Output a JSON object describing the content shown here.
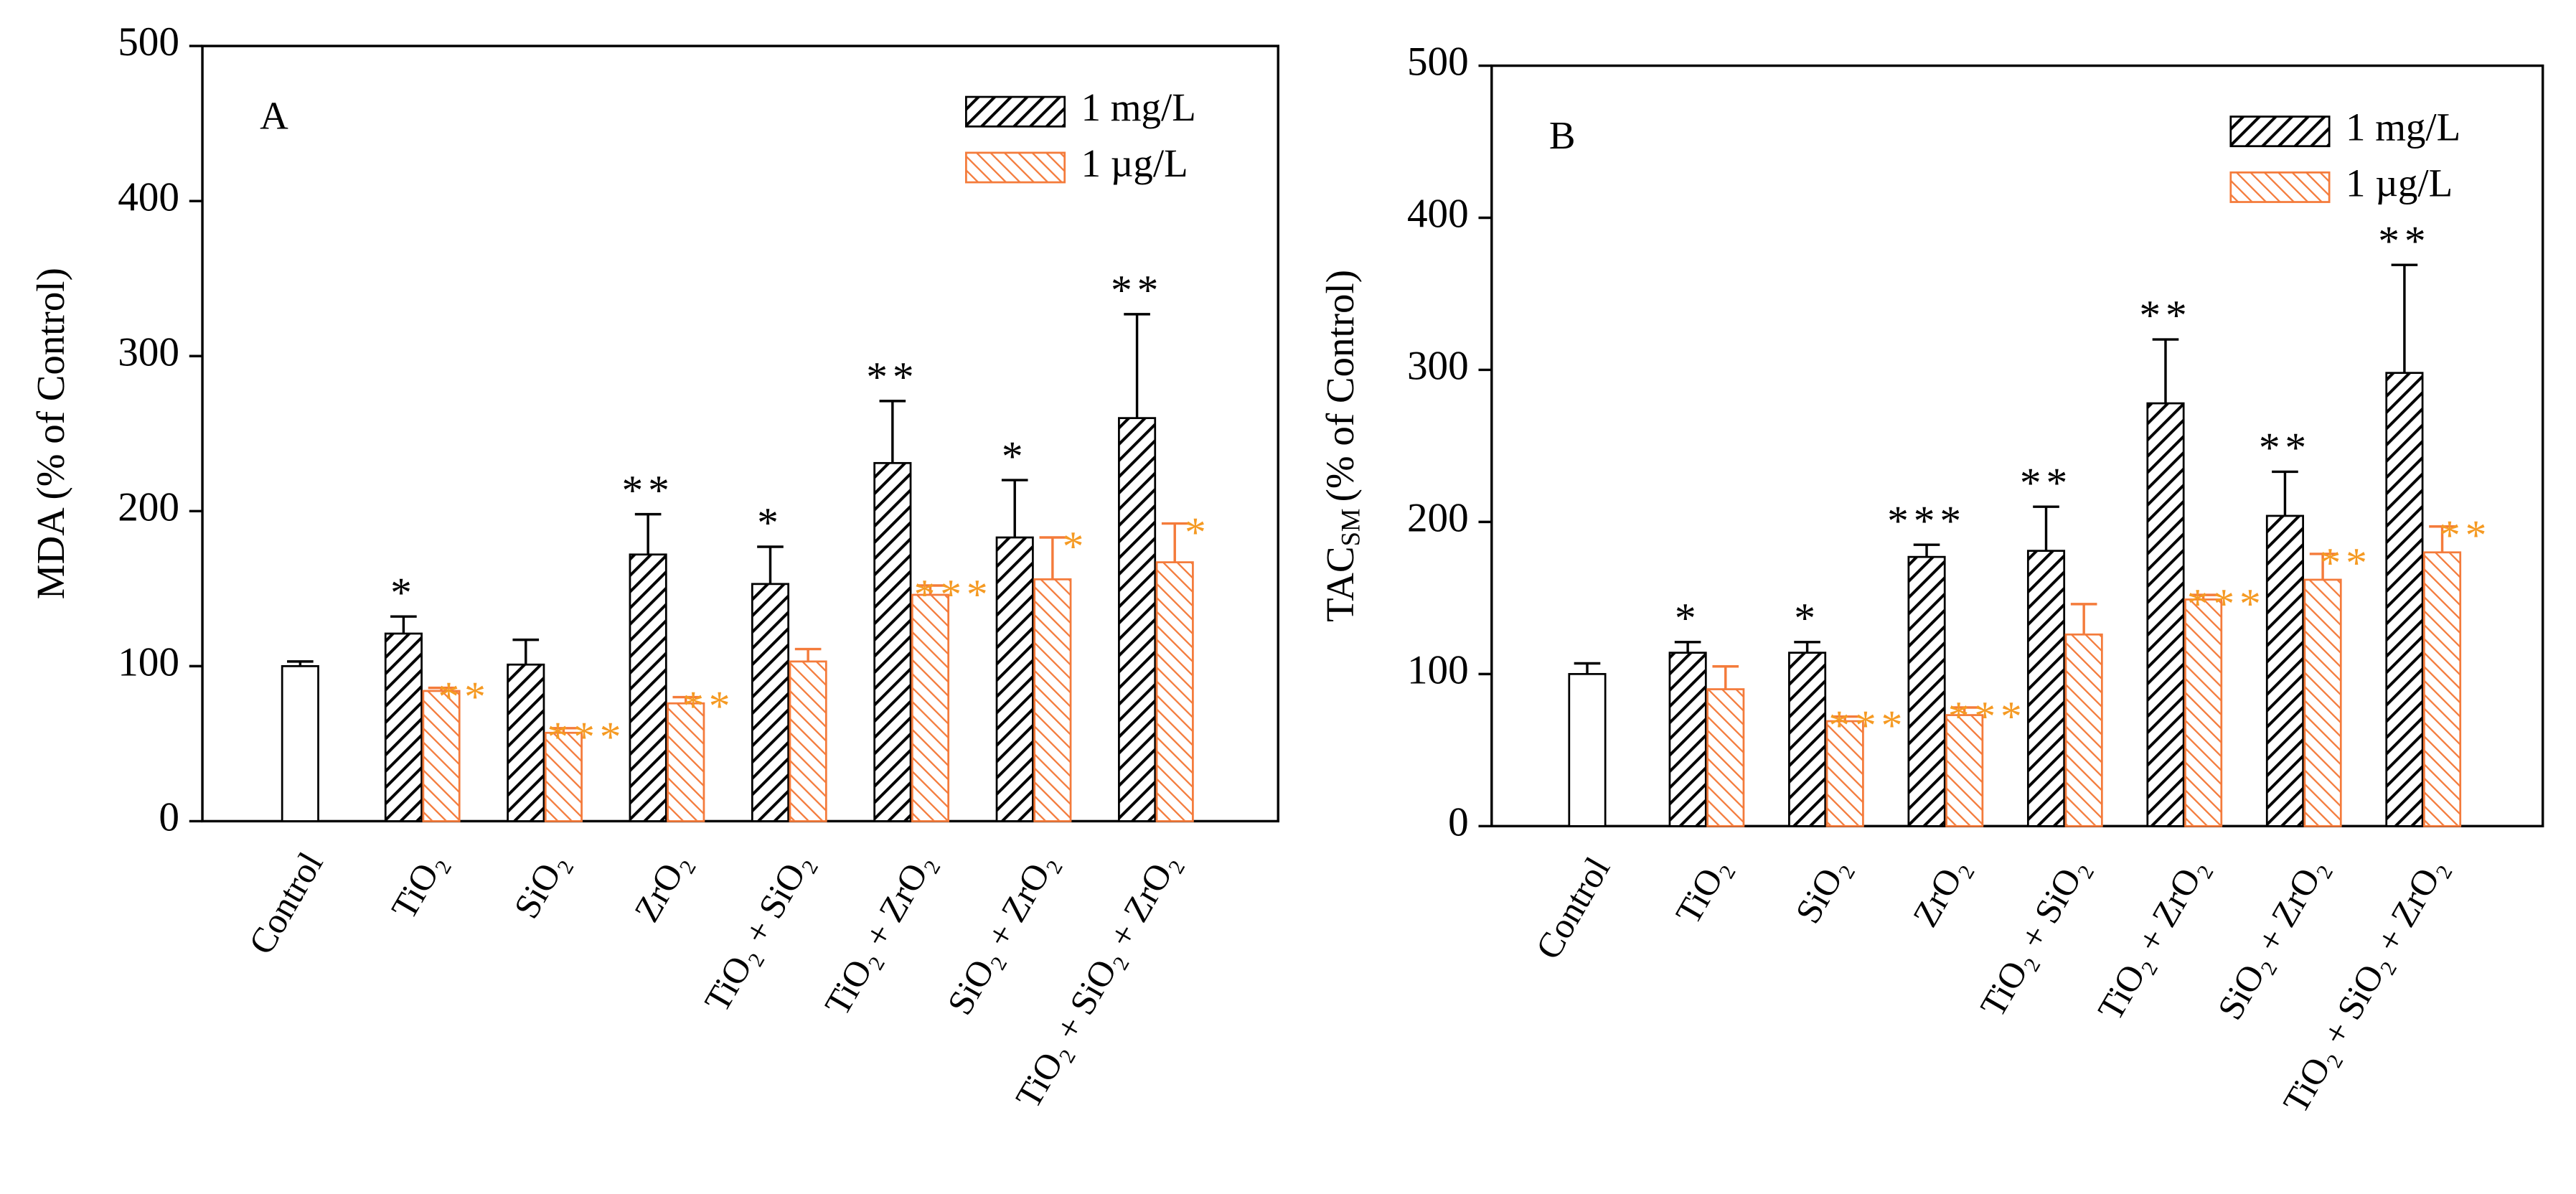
{
  "chart_data": [
    {
      "type": "bar",
      "panel_label": "A",
      "y_label": "MDA (% of Control)",
      "categories": [
        "Control",
        "TiO₂",
        "SiO₂",
        "ZrO₂",
        "TiO₂ + SiO₂",
        "TiO₂ + ZrO₂",
        "SiO₂ + ZrO₂",
        "TiO₂ + SiO₂ + ZrO₂"
      ],
      "control": {
        "value": 100,
        "error": 3,
        "color": "#ffffff"
      },
      "series": [
        {
          "name": "1 mg/L",
          "color": "#000000",
          "values": [
            null,
            121,
            101,
            172,
            153,
            231,
            183,
            260
          ],
          "errors": [
            null,
            11,
            16,
            26,
            24,
            40,
            37,
            67
          ],
          "stars": [
            null,
            "*",
            null,
            "**",
            "*",
            "**",
            "*",
            "**"
          ],
          "star_color": "#000000"
        },
        {
          "name": "1 µg/L",
          "color": "#f47b3b",
          "values": [
            null,
            84,
            57,
            76,
            103,
            146,
            156,
            167
          ],
          "errors": [
            null,
            2,
            3,
            4,
            8,
            6,
            27,
            25
          ],
          "stars": [
            null,
            "**",
            "***",
            "**",
            null,
            "***",
            "*",
            "*"
          ],
          "star_color": "#f59a23"
        }
      ],
      "ylim": [
        0,
        500
      ],
      "yticks": [
        0,
        100,
        200,
        300,
        400,
        500
      ],
      "legend": "upper right"
    },
    {
      "type": "bar",
      "panel_label": "B",
      "y_label": "TAC",
      "y_label_sub": "SM",
      "y_label_rest": "(% of Control)",
      "categories": [
        "Control",
        "TiO₂",
        "SiO₂",
        "ZrO₂",
        "TiO₂ + SiO₂",
        "TiO₂ + ZrO₂",
        "SiO₂ + ZrO₂",
        "TiO₂ + SiO₂ + ZrO₂"
      ],
      "control": {
        "value": 100,
        "error": 7,
        "color": "#ffffff"
      },
      "series": [
        {
          "name": "1 mg/L",
          "color": "#000000",
          "values": [
            null,
            114,
            114,
            177,
            181,
            278,
            204,
            298
          ],
          "errors": [
            null,
            7,
            7,
            8,
            29,
            42,
            29,
            71
          ],
          "stars": [
            null,
            "*",
            "*",
            "***",
            "**",
            "**",
            "**",
            "**"
          ],
          "star_color": "#000000"
        },
        {
          "name": "1 µg/L",
          "color": "#f47b3b",
          "values": [
            null,
            90,
            69,
            73,
            126,
            149,
            162,
            180
          ],
          "errors": [
            null,
            15,
            3,
            5,
            20,
            3,
            17,
            17
          ],
          "stars": [
            null,
            null,
            "***",
            "***",
            null,
            "***",
            "**",
            "**"
          ],
          "star_color": "#f59a23"
        }
      ],
      "ylim": [
        0,
        500
      ],
      "yticks": [
        0,
        100,
        200,
        300,
        400,
        500
      ],
      "legend": "upper right"
    }
  ]
}
